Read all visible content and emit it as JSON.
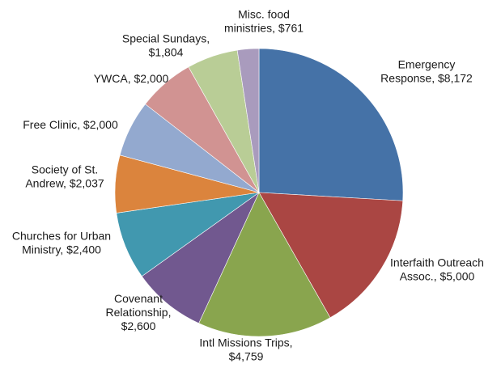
{
  "chart_data": {
    "type": "pie",
    "title": "",
    "slices": [
      {
        "category": "Emergency Response",
        "label_lines": [
          "Emergency",
          "Response, $8,172"
        ],
        "value": 8172,
        "color": "#4572A7"
      },
      {
        "category": "Interfaith Outreach Assoc.",
        "label_lines": [
          "Interfaith Outreach",
          "Assoc., $5,000"
        ],
        "value": 5000,
        "color": "#AA4643"
      },
      {
        "category": "Intl Missions Trips",
        "label_lines": [
          "Intl Missions Trips,",
          "$4,759"
        ],
        "value": 4759,
        "color": "#89A54E"
      },
      {
        "category": "Covenant Relationship",
        "label_lines": [
          "Covenant",
          "Relationship,",
          "$2,600"
        ],
        "value": 2600,
        "color": "#71588F"
      },
      {
        "category": "Churches for Urban Ministry",
        "label_lines": [
          "Churches for Urban",
          "Ministry, $2,400"
        ],
        "value": 2400,
        "color": "#4198AF"
      },
      {
        "category": "Society of St. Andrew",
        "label_lines": [
          "Society of St.",
          "Andrew, $2,037"
        ],
        "value": 2037,
        "color": "#DB843D"
      },
      {
        "category": "Free Clinic",
        "label_lines": [
          "Free Clinic, $2,000"
        ],
        "value": 2000,
        "color": "#93A9CF"
      },
      {
        "category": "YWCA",
        "label_lines": [
          "YWCA, $2,000"
        ],
        "value": 2000,
        "color": "#D19392"
      },
      {
        "category": "Special Sundays",
        "label_lines": [
          "Special Sundays,",
          "$1,804"
        ],
        "value": 1804,
        "color": "#B9CD96"
      },
      {
        "category": "Misc. food ministries",
        "label_lines": [
          "Misc. food",
          "ministries, $761"
        ],
        "value": 761,
        "color": "#A99BBD"
      }
    ],
    "start_angle_degrees": 0,
    "direction": "clockwise",
    "legend": "none",
    "data_labels": "outside"
  }
}
